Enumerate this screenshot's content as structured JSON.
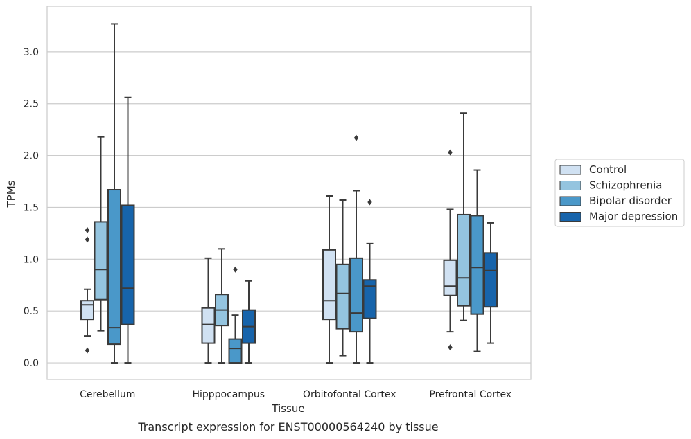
{
  "chart_data": {
    "type": "box",
    "title": "",
    "caption": "Transcript expression for ENST00000564240 by tissue",
    "xlabel": "Tissue",
    "ylabel": "TPMs",
    "ylim": [
      -0.16,
      3.44
    ],
    "yticks": [
      "0.0",
      "0.5",
      "1.0",
      "1.5",
      "2.0",
      "2.5",
      "3.0"
    ],
    "ytick_values": [
      0.0,
      0.5,
      1.0,
      1.5,
      2.0,
      2.5,
      3.0
    ],
    "grid": true,
    "legend_position": "right",
    "categories": [
      "Cerebellum",
      "Hipppocampus",
      "Orbitofontal Cortex",
      "Prefrontal Cortex"
    ],
    "series": [
      {
        "name": "Control",
        "color": "#d0e1f2",
        "boxes": [
          {
            "whisker_low": 0.26,
            "q1": 0.42,
            "median": 0.56,
            "q3": 0.6,
            "whisker_high": 0.71,
            "outliers": [
              0.12,
              1.19,
              1.28
            ]
          },
          {
            "whisker_low": 0.0,
            "q1": 0.19,
            "median": 0.37,
            "q3": 0.53,
            "whisker_high": 1.01,
            "outliers": []
          },
          {
            "whisker_low": 0.0,
            "q1": 0.42,
            "median": 0.6,
            "q3": 1.09,
            "whisker_high": 1.61,
            "outliers": []
          },
          {
            "whisker_low": 0.3,
            "q1": 0.65,
            "median": 0.74,
            "q3": 0.99,
            "whisker_high": 1.48,
            "outliers": [
              0.15,
              2.03
            ]
          }
        ]
      },
      {
        "name": "Schizophrenia",
        "color": "#94c4df",
        "boxes": [
          {
            "whisker_low": 0.31,
            "q1": 0.61,
            "median": 0.9,
            "q3": 1.36,
            "whisker_high": 2.18,
            "outliers": []
          },
          {
            "whisker_low": 0.0,
            "q1": 0.36,
            "median": 0.51,
            "q3": 0.66,
            "whisker_high": 1.1,
            "outliers": []
          },
          {
            "whisker_low": 0.07,
            "q1": 0.33,
            "median": 0.67,
            "q3": 0.95,
            "whisker_high": 1.57,
            "outliers": []
          },
          {
            "whisker_low": 0.41,
            "q1": 0.55,
            "median": 0.82,
            "q3": 1.43,
            "whisker_high": 2.41,
            "outliers": []
          }
        ]
      },
      {
        "name": "Bipolar disorder",
        "color": "#4a98c9",
        "boxes": [
          {
            "whisker_low": 0.0,
            "q1": 0.18,
            "median": 0.34,
            "q3": 1.67,
            "whisker_high": 3.27,
            "outliers": []
          },
          {
            "whisker_low": 0.0,
            "q1": 0.0,
            "median": 0.14,
            "q3": 0.23,
            "whisker_high": 0.46,
            "outliers": [
              0.9
            ]
          },
          {
            "whisker_low": 0.0,
            "q1": 0.3,
            "median": 0.48,
            "q3": 1.01,
            "whisker_high": 1.66,
            "outliers": [
              2.17
            ]
          },
          {
            "whisker_low": 0.11,
            "q1": 0.47,
            "median": 0.92,
            "q3": 1.42,
            "whisker_high": 1.86,
            "outliers": []
          }
        ]
      },
      {
        "name": "Major depression",
        "color": "#1764ab",
        "boxes": [
          {
            "whisker_low": 0.0,
            "q1": 0.37,
            "median": 0.72,
            "q3": 1.52,
            "whisker_high": 2.56,
            "outliers": []
          },
          {
            "whisker_low": 0.0,
            "q1": 0.19,
            "median": 0.35,
            "q3": 0.51,
            "whisker_high": 0.79,
            "outliers": []
          },
          {
            "whisker_low": 0.0,
            "q1": 0.43,
            "median": 0.74,
            "q3": 0.8,
            "whisker_high": 1.15,
            "outliers": [
              1.55
            ]
          },
          {
            "whisker_low": 0.19,
            "q1": 0.54,
            "median": 0.89,
            "q3": 1.06,
            "whisker_high": 1.35,
            "outliers": []
          }
        ]
      }
    ]
  }
}
